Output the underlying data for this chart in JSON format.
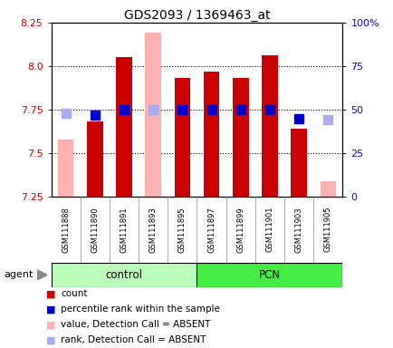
{
  "title": "GDS2093 / 1369463_at",
  "samples": [
    "GSM111888",
    "GSM111890",
    "GSM111891",
    "GSM111893",
    "GSM111895",
    "GSM111897",
    "GSM111899",
    "GSM111901",
    "GSM111903",
    "GSM111905"
  ],
  "groups": [
    "control",
    "control",
    "control",
    "control",
    "control",
    "PCN",
    "PCN",
    "PCN",
    "PCN",
    "PCN"
  ],
  "bar_values": [
    7.58,
    7.68,
    8.05,
    8.19,
    7.93,
    7.97,
    7.93,
    8.06,
    7.64,
    7.34
  ],
  "bar_absent": [
    true,
    false,
    false,
    true,
    false,
    false,
    false,
    false,
    false,
    true
  ],
  "rank_values": [
    48,
    47,
    50,
    50,
    50,
    50,
    50,
    50,
    45,
    44
  ],
  "rank_absent": [
    true,
    false,
    false,
    true,
    false,
    false,
    false,
    false,
    false,
    true
  ],
  "ylim_left": [
    7.25,
    8.25
  ],
  "ylim_right": [
    0,
    100
  ],
  "yticks_left": [
    7.25,
    7.5,
    7.75,
    8.0,
    8.25
  ],
  "yticks_right": [
    0,
    25,
    50,
    75,
    100
  ],
  "ytick_labels_right": [
    "0",
    "25",
    "50",
    "75",
    "100%"
  ],
  "color_bar_present": "#cc0000",
  "color_bar_absent": "#ffb0b0",
  "color_rank_present": "#0000cc",
  "color_rank_absent": "#aaaaee",
  "color_control_bg": "#bbffbb",
  "color_pcn_bg": "#44ee44",
  "color_xticklabel_bg": "#cccccc",
  "bar_width": 0.55,
  "rank_marker_size": 45,
  "grid_color": "#000000",
  "legend_labels": [
    "count",
    "percentile rank within the sample",
    "value, Detection Call = ABSENT",
    "rank, Detection Call = ABSENT"
  ],
  "legend_colors": [
    "#cc0000",
    "#0000cc",
    "#ffb0b0",
    "#aaaaee"
  ]
}
